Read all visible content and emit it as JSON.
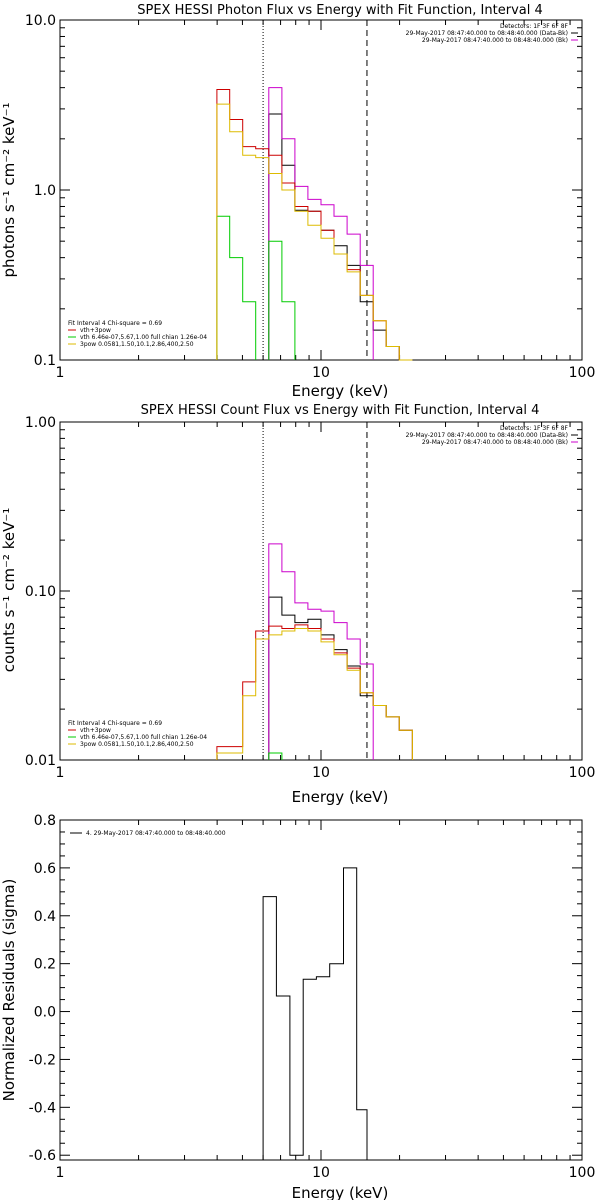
{
  "chart_data": [
    {
      "type": "line",
      "title": "SPEX HESSI Photon Flux vs Energy with Fit Function, Interval 4",
      "xlabel": "Energy (keV)",
      "ylabel": "photons s⁻¹ cm⁻² keV⁻¹",
      "xscale": "log",
      "yscale": "log",
      "xlim": [
        1,
        100
      ],
      "ylim": [
        0.1,
        10
      ],
      "x_ticks": [
        "1",
        "10",
        "100"
      ],
      "y_ticks": [
        "0.1",
        "1.0",
        "10.0"
      ],
      "legend_top_right": [
        {
          "text": "Detectors: 1F 3F 6F 8F",
          "color": "#000000"
        },
        {
          "text": "29-May-2017 08:47:40.000 to 08:48:40.000 (Data-Bk)",
          "color": "#000000"
        },
        {
          "text": "29-May-2017 08:47:40.000 to 08:48:40.000 (Bk)",
          "color": "#cc00cc"
        }
      ],
      "legend_bottom_left": [
        {
          "text": "Fit Interval  4    Chi-square = 0.69",
          "color": "#000000"
        },
        {
          "text": "vth+3pow",
          "color": "#cc0000"
        },
        {
          "text": "vth 6.46e-07,5.67,1.00  full chian 1.26e-04",
          "color": "#00cc00"
        },
        {
          "text": "3pow 0.0581,1.50,10.1,2.86,400,2.50",
          "color": "#ddbb00"
        }
      ],
      "vlines": [
        {
          "x": 6,
          "style": "dotted"
        },
        {
          "x": 15,
          "style": "dashed"
        }
      ],
      "edges": [
        3.99,
        4.47,
        5.01,
        5.62,
        6.31,
        7.08,
        7.94,
        8.91,
        10.0,
        11.22,
        12.59,
        14.13,
        15.85,
        17.78,
        19.95,
        22.39
      ],
      "series": [
        {
          "color": "#000000",
          "values": [
            null,
            null,
            null,
            null,
            2.8,
            1.4,
            0.76,
            0.75,
            0.58,
            0.47,
            0.36,
            0.22,
            0.15,
            0.12,
            0.1
          ]
        },
        {
          "color": "#cc00cc",
          "values": [
            null,
            null,
            null,
            null,
            4.0,
            2.0,
            1.05,
            0.88,
            0.82,
            0.7,
            0.55,
            0.36,
            null,
            null,
            null
          ]
        },
        {
          "color": "#cc0000",
          "values": [
            3.9,
            2.6,
            1.8,
            1.75,
            1.6,
            1.1,
            0.8,
            0.75,
            0.58,
            0.42,
            0.34,
            0.24,
            0.17,
            0.12,
            0.1
          ]
        },
        {
          "color": "#00cc00",
          "values": [
            0.7,
            0.4,
            0.22,
            null,
            0.5,
            0.22,
            null,
            null,
            null,
            null,
            null,
            null,
            null,
            null,
            null
          ]
        },
        {
          "color": "#ddbb00",
          "values": [
            3.2,
            2.2,
            1.6,
            1.55,
            1.25,
            1.0,
            0.75,
            0.62,
            0.52,
            0.42,
            0.33,
            0.24,
            0.17,
            0.12,
            0.1
          ]
        }
      ]
    },
    {
      "type": "line",
      "title": "SPEX HESSI Count Flux vs Energy with Fit Function, Interval 4",
      "xlabel": "Energy (keV)",
      "ylabel": "counts s⁻¹ cm⁻² keV⁻¹",
      "xscale": "log",
      "yscale": "log",
      "xlim": [
        1,
        100
      ],
      "ylim": [
        0.01,
        1.0
      ],
      "x_ticks": [
        "1",
        "10",
        "100"
      ],
      "y_ticks": [
        "0.01",
        "0.10",
        "1.00"
      ],
      "legend_top_right": [
        {
          "text": "Detectors: 1F 3F 6F 8F",
          "color": "#000000"
        },
        {
          "text": "29-May-2017 08:47:40.000 to 08:48:40.000 (Data-Bk)",
          "color": "#000000"
        },
        {
          "text": "29-May-2017 08:47:40.000 to 08:48:40.000 (Bk)",
          "color": "#cc00cc"
        }
      ],
      "legend_bottom_left": [
        {
          "text": "Fit Interval  4    Chi-square = 0.69",
          "color": "#000000"
        },
        {
          "text": "vth+3pow",
          "color": "#cc0000"
        },
        {
          "text": "vth 6.46e-07,5.67,1.00  full chian 1.26e-04",
          "color": "#00cc00"
        },
        {
          "text": "3pow 0.0581,1.50,10.1,2.86,400,2.50",
          "color": "#ddbb00"
        }
      ],
      "vlines": [
        {
          "x": 6,
          "style": "dotted"
        },
        {
          "x": 15,
          "style": "dashed"
        }
      ],
      "edges": [
        3.99,
        4.47,
        5.01,
        5.62,
        6.31,
        7.08,
        7.94,
        8.91,
        10.0,
        11.22,
        12.59,
        14.13,
        15.85,
        17.78,
        19.95,
        22.39
      ],
      "series": [
        {
          "color": "#000000",
          "values": [
            null,
            null,
            null,
            null,
            0.092,
            0.072,
            0.065,
            0.068,
            0.055,
            0.045,
            0.036,
            0.024,
            0.021,
            0.018,
            0.015
          ]
        },
        {
          "color": "#cc00cc",
          "values": [
            null,
            null,
            null,
            null,
            0.19,
            0.13,
            0.085,
            0.078,
            0.076,
            0.065,
            0.052,
            0.037,
            null,
            null,
            null
          ]
        },
        {
          "color": "#cc0000",
          "values": [
            0.012,
            0.012,
            0.029,
            0.058,
            0.062,
            0.06,
            0.063,
            0.06,
            0.052,
            0.043,
            0.035,
            0.025,
            0.021,
            0.018,
            0.015
          ]
        },
        {
          "color": "#00cc00",
          "values": [
            null,
            null,
            null,
            null,
            0.011,
            null,
            null,
            null,
            null,
            null,
            null,
            null,
            null,
            null,
            null
          ]
        },
        {
          "color": "#ddbb00",
          "values": [
            0.011,
            0.011,
            0.024,
            0.052,
            0.055,
            0.058,
            0.06,
            0.058,
            0.05,
            0.042,
            0.034,
            0.025,
            0.021,
            0.018,
            0.015
          ]
        }
      ]
    },
    {
      "type": "line",
      "title": "",
      "xlabel": "Energy (keV)",
      "ylabel": "Normalized Residuals (sigma)",
      "xscale": "log",
      "yscale": "linear",
      "xlim": [
        1,
        100
      ],
      "ylim": [
        -0.62,
        0.8
      ],
      "x_ticks": [
        "1",
        "10",
        "100"
      ],
      "y_ticks": [
        "-0.6",
        "-0.4",
        "-0.2",
        "0.0",
        "0.2",
        "0.4",
        "0.6",
        "0.8"
      ],
      "legend_top_left": [
        {
          "text": "4. 29-May-2017 08:47:40.000 to 08:48:40.000",
          "color": "#000000"
        }
      ],
      "edges": [
        6.0,
        6.75,
        7.6,
        8.55,
        9.6,
        10.8,
        12.2,
        13.7,
        15.0
      ],
      "series": [
        {
          "color": "#000000",
          "values": [
            0.48,
            0.065,
            -0.6,
            0.135,
            0.145,
            0.2,
            0.6,
            -0.41
          ]
        }
      ]
    }
  ]
}
